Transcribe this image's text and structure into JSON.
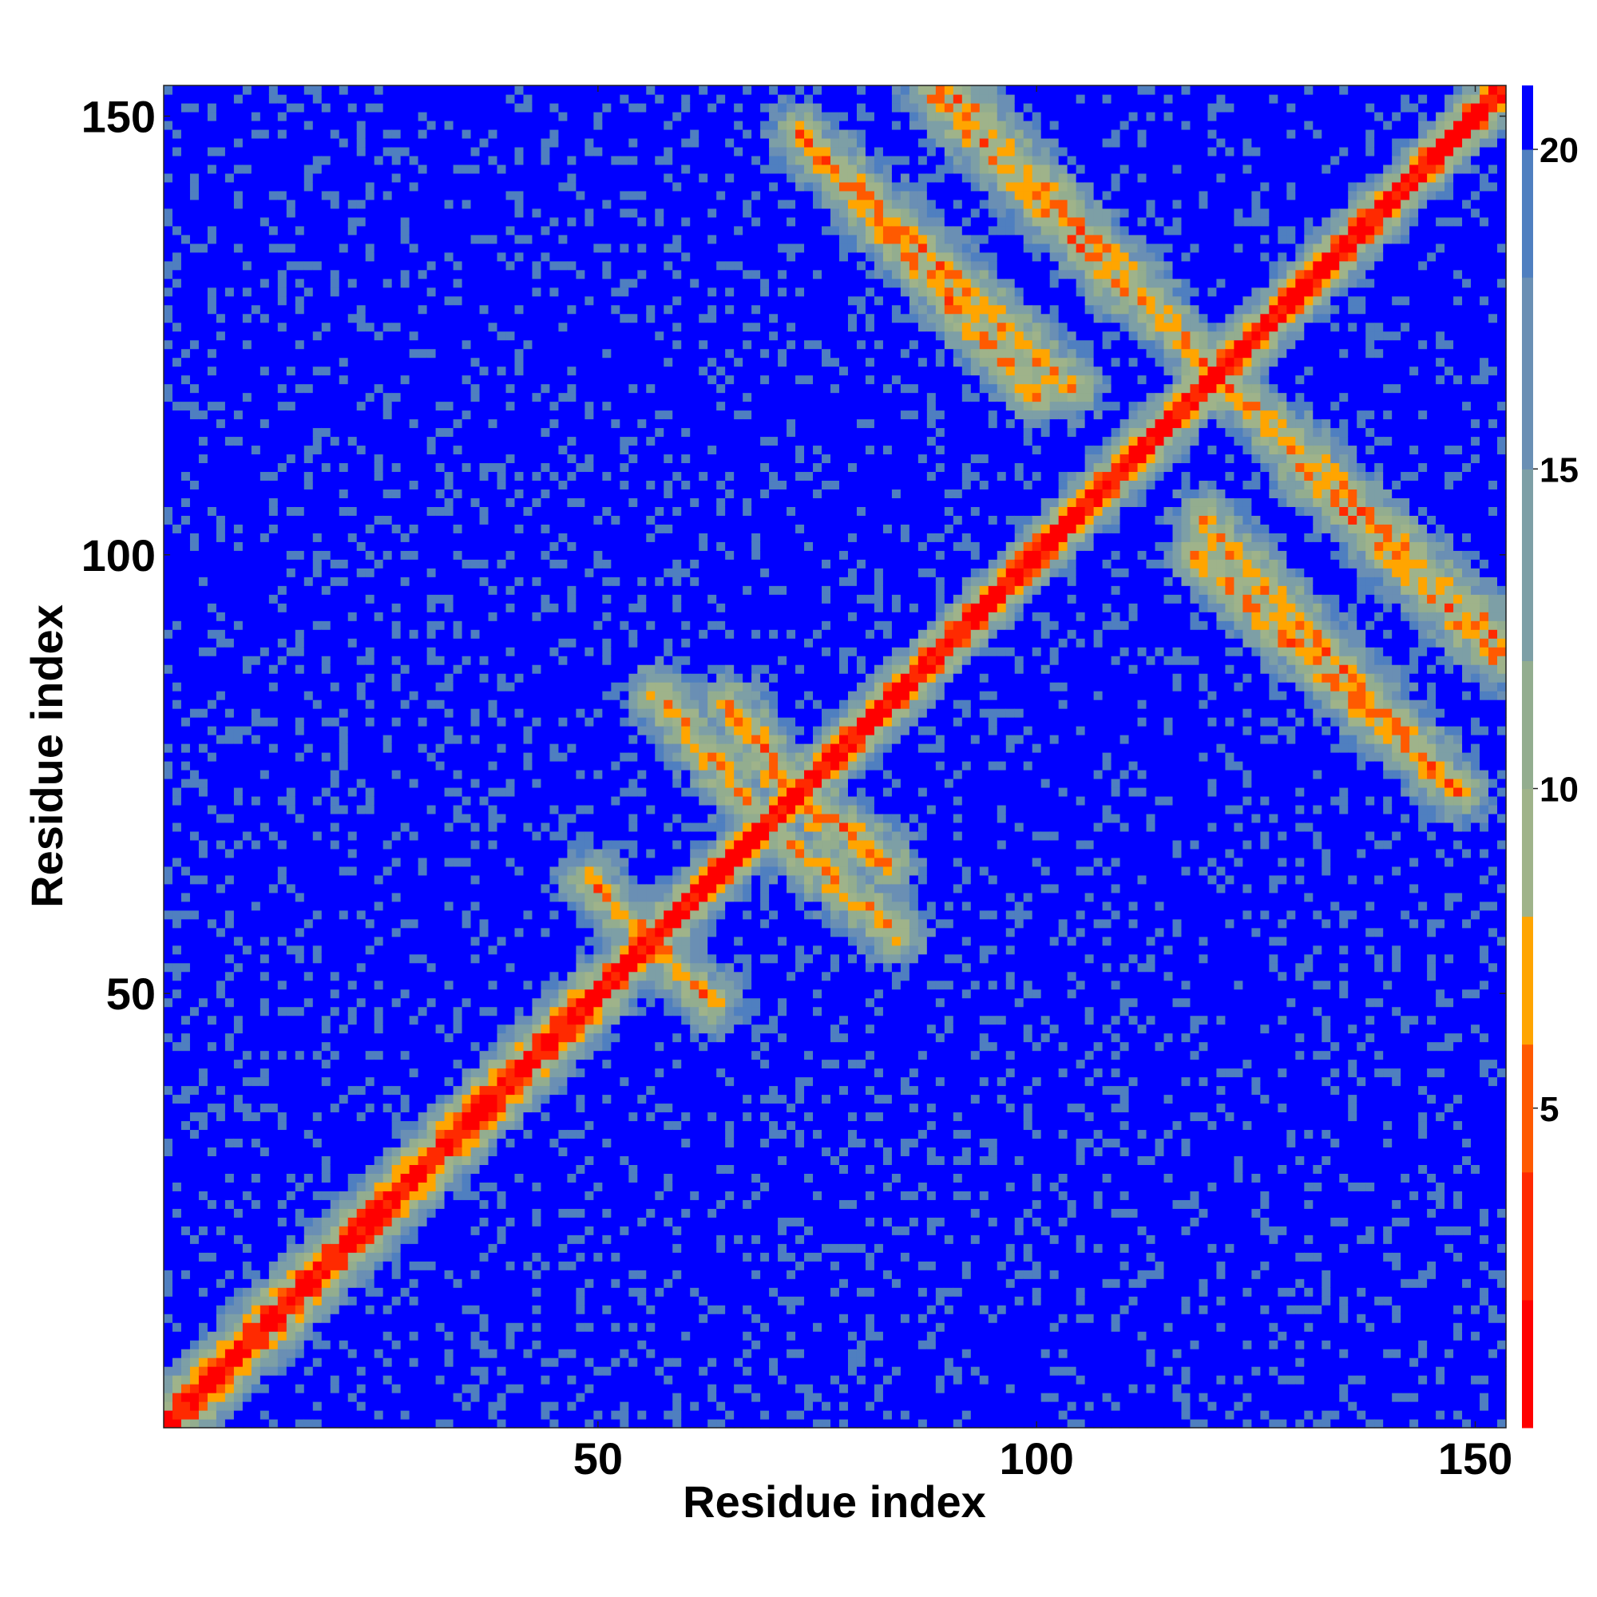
{
  "chart_data": {
    "type": "heatmap",
    "title": "",
    "xlabel": "Residue index",
    "ylabel": "Residue index",
    "n_residues": 153,
    "xlim": [
      1,
      153
    ],
    "ylim": [
      1,
      153
    ],
    "x_ticks": [
      {
        "value": 50,
        "label": "50"
      },
      {
        "value": 100,
        "label": "100"
      },
      {
        "value": 150,
        "label": "150"
      }
    ],
    "y_ticks": [
      {
        "value": 50,
        "label": "50"
      },
      {
        "value": 100,
        "label": "100"
      },
      {
        "value": 150,
        "label": "150"
      }
    ],
    "colorbar": {
      "range": [
        0,
        21
      ],
      "ticks": [
        {
          "value": 5,
          "label": "5"
        },
        {
          "value": 10,
          "label": "10"
        },
        {
          "value": 15,
          "label": "15"
        },
        {
          "value": 20,
          "label": "20"
        }
      ],
      "bands": [
        {
          "from": 0,
          "to": 2,
          "color": "#ff0000"
        },
        {
          "from": 2,
          "to": 4,
          "color": "#ff2a00"
        },
        {
          "from": 4,
          "to": 6,
          "color": "#ff5a00"
        },
        {
          "from": 6,
          "to": 8,
          "color": "#ffa500"
        },
        {
          "from": 8,
          "to": 10,
          "color": "#9fb38a"
        },
        {
          "from": 10,
          "to": 12,
          "color": "#93ad8f"
        },
        {
          "from": 12,
          "to": 15,
          "color": "#7d9fa6"
        },
        {
          "from": 15,
          "to": 18,
          "color": "#6a8fb4"
        },
        {
          "from": 18,
          "to": 20,
          "color": "#4f7fc0"
        },
        {
          "from": 20,
          "to": 21,
          "color": "#0000ff"
        }
      ]
    },
    "contact_features": [
      {
        "kind": "diagonal",
        "from": 1,
        "to": 153,
        "value": 0
      },
      {
        "kind": "parallel_band",
        "i_from": 1,
        "i_to": 48,
        "offset": 2,
        "value": 6
      },
      {
        "kind": "antiparallel",
        "x_from": 65,
        "y_from": 83,
        "x_to": 75,
        "y_to": 70,
        "value": 6
      },
      {
        "kind": "antiparallel",
        "x_from": 49,
        "y_from": 63,
        "x_to": 63,
        "y_to": 49,
        "value": 6
      },
      {
        "kind": "antiparallel",
        "x_from": 72,
        "y_from": 67,
        "x_to": 84,
        "y_to": 57,
        "value": 6
      },
      {
        "kind": "antiparallel",
        "x_from": 73,
        "y_from": 148,
        "x_to": 104,
        "y_to": 119,
        "value": 6
      },
      {
        "kind": "antiparallel",
        "x_from": 90,
        "y_from": 153,
        "x_to": 113,
        "y_to": 129,
        "value": 6
      },
      {
        "kind": "antiparallel",
        "x_from": 120,
        "y_from": 121,
        "x_to": 153,
        "y_to": 90,
        "value": 6
      },
      {
        "kind": "antiparallel",
        "x_from": 130,
        "y_from": 110,
        "x_to": 153,
        "y_to": 88,
        "value": 6
      },
      {
        "kind": "antiparallel",
        "x_from": 118,
        "y_from": 100,
        "x_to": 148,
        "y_to": 73,
        "value": 6
      }
    ]
  }
}
